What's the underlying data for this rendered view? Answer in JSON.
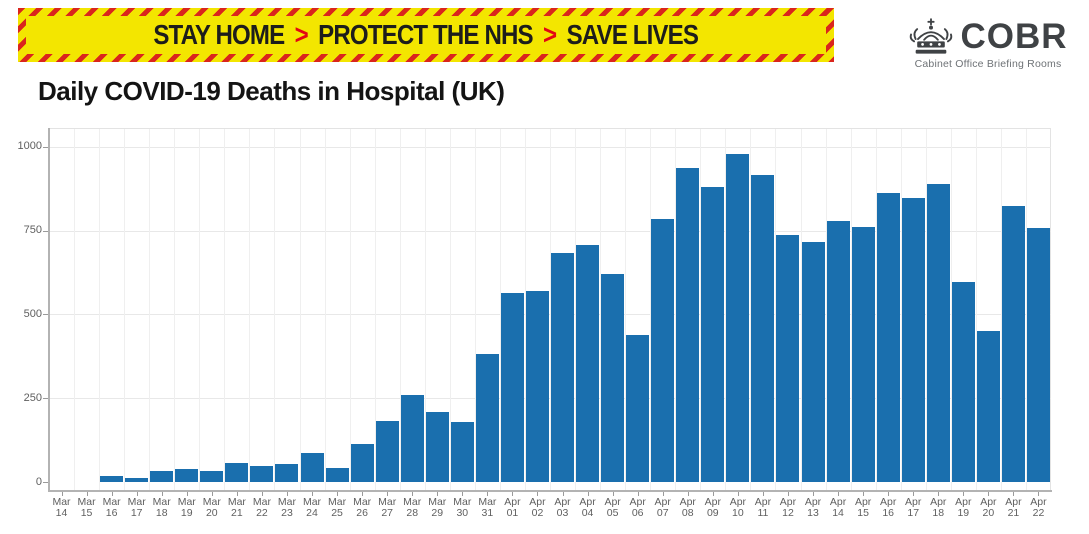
{
  "banner": {
    "segment1": "STAY HOME",
    "segment2": "PROTECT THE NHS",
    "segment3": "SAVE LIVES",
    "chevron": ">",
    "background_color": "#f3e600",
    "stripe_color": "#da251d",
    "text_color": "#1d1d1b",
    "chevron_color": "#e30613"
  },
  "logo": {
    "title": "COBR",
    "subtitle": "Cabinet Office Briefing Rooms",
    "crest_icon": "royal-crest-icon",
    "text_color": "#3f4245"
  },
  "page_title": "Daily COVID-19 Deaths in Hospital (UK)",
  "chart_data": {
    "type": "bar",
    "title": "Daily COVID-19 Deaths in Hospital (UK)",
    "categories": [
      "Mar 14",
      "Mar 15",
      "Mar 16",
      "Mar 17",
      "Mar 18",
      "Mar 19",
      "Mar 20",
      "Mar 21",
      "Mar 22",
      "Mar 23",
      "Mar 24",
      "Mar 25",
      "Mar 26",
      "Mar 27",
      "Mar 28",
      "Mar 29",
      "Mar 30",
      "Mar 31",
      "Apr 01",
      "Apr 02",
      "Apr 03",
      "Apr 04",
      "Apr 05",
      "Apr 06",
      "Apr 07",
      "Apr 08",
      "Apr 09",
      "Apr 10",
      "Apr 11",
      "Apr 12",
      "Apr 13",
      "Apr 14",
      "Apr 15",
      "Apr 16",
      "Apr 17",
      "Apr 18",
      "Apr 19",
      "Apr 20",
      "Apr 21",
      "Apr 22"
    ],
    "values": [
      0,
      0,
      18,
      12,
      32,
      40,
      33,
      56,
      48,
      54,
      87,
      43,
      113,
      181,
      260,
      209,
      180,
      381,
      563,
      569,
      684,
      708,
      621,
      439,
      786,
      938,
      881,
      980,
      917,
      737,
      717,
      778,
      761,
      861,
      847,
      888,
      596,
      449,
      823,
      759
    ],
    "bar_color": "#1a6fae",
    "yticks": [
      0,
      250,
      500,
      750,
      1000
    ],
    "ylim": [
      0,
      1056
    ],
    "xlabel": "",
    "ylabel": "",
    "grid": "on",
    "legend": "none",
    "axis_label_color": "#5f5f5f"
  }
}
